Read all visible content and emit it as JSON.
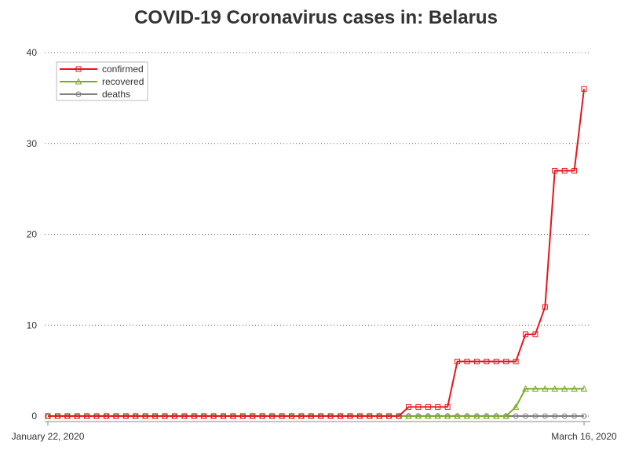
{
  "page": {
    "title": "COVID-19 Coronavirus cases in: Belarus"
  },
  "chart_data": {
    "type": "line",
    "title": "COVID-19 Coronavirus cases in: Belarus",
    "xlabel": "",
    "ylabel": "",
    "x_start": "2020-01-22",
    "x_end": "2020-03-16",
    "x_tick_labels": [
      "January 22, 2020",
      "March 16, 2020"
    ],
    "ylim": [
      0,
      40
    ],
    "y_ticks": [
      0,
      10,
      20,
      30,
      40
    ],
    "grid": "horizontal dotted",
    "legend_position": "top-left",
    "series": [
      {
        "name": "confirmed",
        "color": "#e8141c",
        "marker": "square",
        "values": [
          0,
          0,
          0,
          0,
          0,
          0,
          0,
          0,
          0,
          0,
          0,
          0,
          0,
          0,
          0,
          0,
          0,
          0,
          0,
          0,
          0,
          0,
          0,
          0,
          0,
          0,
          0,
          0,
          0,
          0,
          0,
          0,
          0,
          0,
          0,
          0,
          0,
          1,
          1,
          1,
          1,
          1,
          6,
          6,
          6,
          6,
          6,
          6,
          6,
          9,
          9,
          12,
          27,
          27,
          27,
          36
        ]
      },
      {
        "name": "recovered",
        "color": "#78ac2c",
        "marker": "triangle",
        "values": [
          0,
          0,
          0,
          0,
          0,
          0,
          0,
          0,
          0,
          0,
          0,
          0,
          0,
          0,
          0,
          0,
          0,
          0,
          0,
          0,
          0,
          0,
          0,
          0,
          0,
          0,
          0,
          0,
          0,
          0,
          0,
          0,
          0,
          0,
          0,
          0,
          0,
          0,
          0,
          0,
          0,
          0,
          0,
          0,
          0,
          0,
          0,
          0,
          1,
          3,
          3,
          3,
          3,
          3,
          3,
          3
        ]
      },
      {
        "name": "deaths",
        "color": "#7f7f7f",
        "marker": "circle",
        "values": [
          0,
          0,
          0,
          0,
          0,
          0,
          0,
          0,
          0,
          0,
          0,
          0,
          0,
          0,
          0,
          0,
          0,
          0,
          0,
          0,
          0,
          0,
          0,
          0,
          0,
          0,
          0,
          0,
          0,
          0,
          0,
          0,
          0,
          0,
          0,
          0,
          0,
          0,
          0,
          0,
          0,
          0,
          0,
          0,
          0,
          0,
          0,
          0,
          0,
          0,
          0,
          0,
          0,
          0,
          0,
          0
        ]
      }
    ]
  }
}
